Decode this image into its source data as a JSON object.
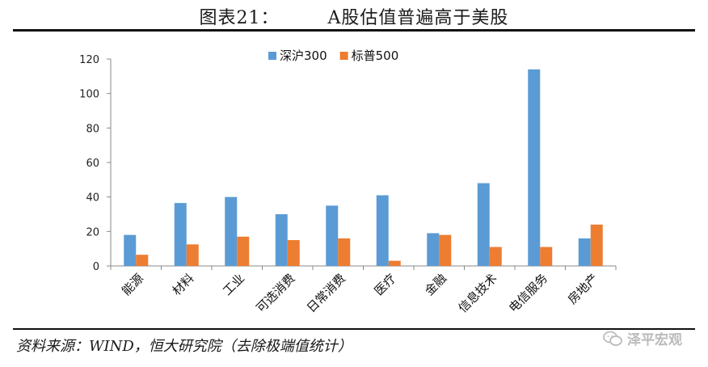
{
  "header": {
    "label": "图表21：",
    "title": "A股估值普遍高于美股"
  },
  "footer": {
    "source": "资料来源：WIND，恒大研究院（去除极端值统计）",
    "watermark": "泽平宏观",
    "watermark_icon": "wechat-icon"
  },
  "colors": {
    "series_1": "#5b9bd5",
    "series_2": "#ed7d31",
    "axis": "#888888"
  },
  "chart_data": {
    "type": "bar",
    "categories": [
      "能源",
      "材料",
      "工业",
      "可选消费",
      "日常消费",
      "医疗",
      "金融",
      "信息技术",
      "电信服务",
      "房地产"
    ],
    "series": [
      {
        "name": "深沪300",
        "values": [
          18,
          36.5,
          40,
          30,
          35,
          41,
          19,
          48,
          114,
          16
        ]
      },
      {
        "name": "标普500",
        "values": [
          6.5,
          12.5,
          17,
          15,
          16,
          3,
          18,
          11,
          11,
          24
        ]
      }
    ],
    "ylim": [
      0,
      120
    ],
    "yticks": [
      0,
      20,
      40,
      60,
      80,
      100,
      120
    ],
    "xlabel": "",
    "ylabel": "",
    "grid": false,
    "legend_position": "top-center"
  }
}
